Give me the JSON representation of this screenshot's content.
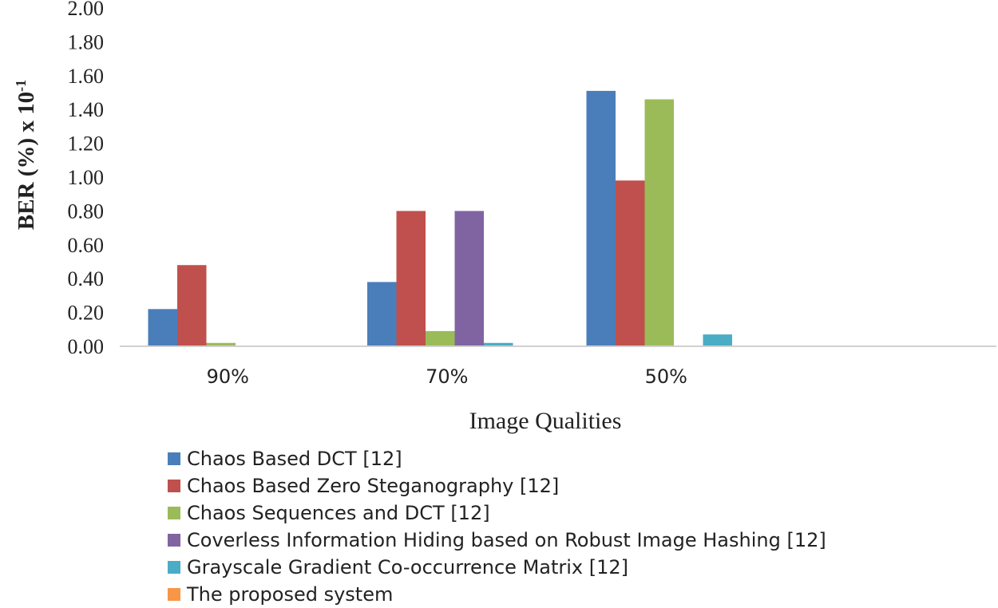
{
  "chart_data": {
    "type": "bar",
    "title": "",
    "xlabel": "Image Qualities",
    "ylabel": "BER (%) x 10",
    "ylabel_superscript": "-1",
    "ylim": [
      0,
      2.0
    ],
    "ytick_step": 0.2,
    "categories": [
      "90%",
      "70%",
      "50%"
    ],
    "series": [
      {
        "name": "Chaos Based DCT [12]",
        "color": "#4a7ebb",
        "values": [
          0.22,
          0.38,
          1.51
        ]
      },
      {
        "name": "Chaos Based Zero Steganography [12]",
        "color": "#c0504d",
        "values": [
          0.48,
          0.8,
          0.98
        ]
      },
      {
        "name": "Chaos Sequences and DCT [12]",
        "color": "#9bbb59",
        "values": [
          0.02,
          0.09,
          1.46
        ]
      },
      {
        "name": "Coverless Information Hiding based on Robust Image Hashing [12]",
        "color": "#8064a2",
        "values": [
          0,
          0.8,
          0
        ]
      },
      {
        "name": "Grayscale Gradient Co-occurrence Matrix [12]",
        "color": "#4bacc6",
        "values": [
          0,
          0.02,
          0.07
        ]
      },
      {
        "name": "The proposed system",
        "color": "#f79646",
        "values": [
          0,
          0,
          0
        ]
      }
    ],
    "grid": false,
    "legend_position": "bottom"
  }
}
